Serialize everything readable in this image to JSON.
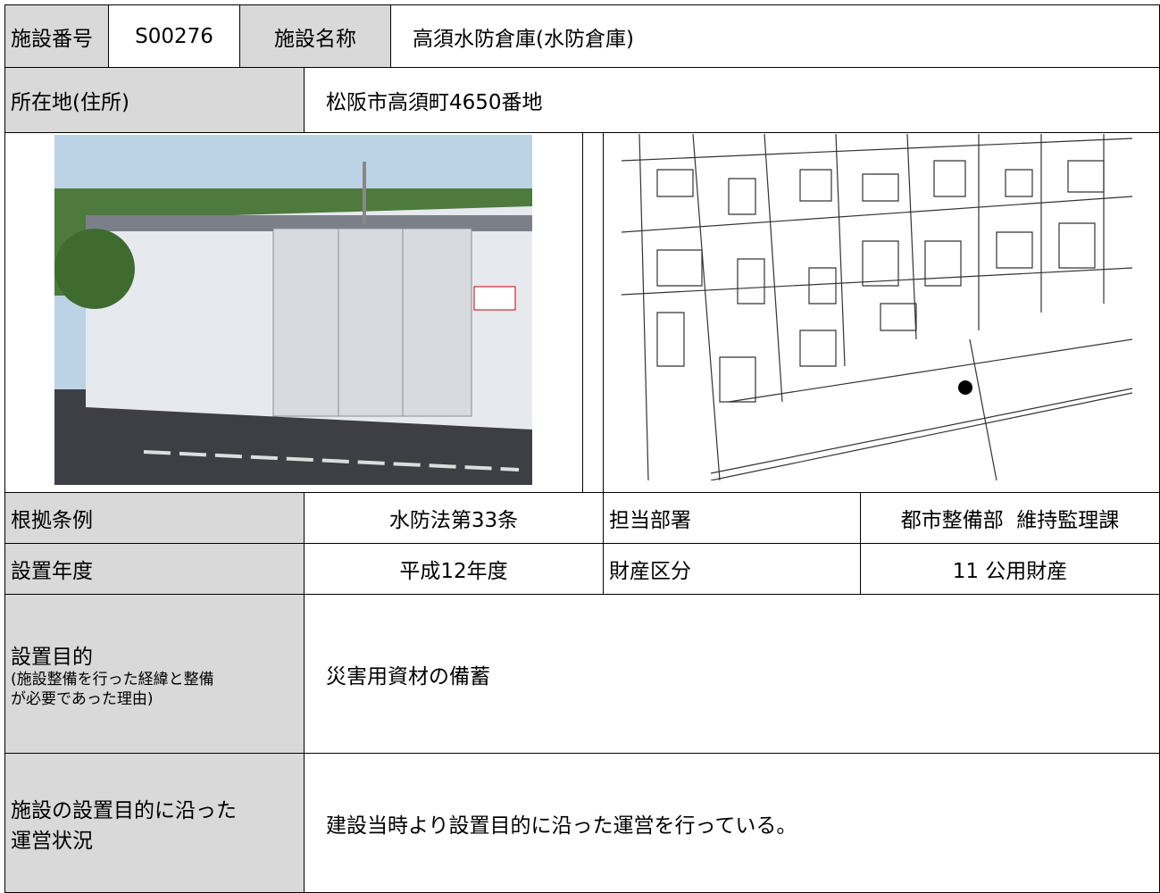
{
  "header": {
    "number_label": "施設番号",
    "number": "S00276",
    "name_label": "施設名称",
    "name": "高須水防倉庫(水防倉庫)"
  },
  "address": {
    "label": "所在地(住所)",
    "value": "松阪市高須町4650番地"
  },
  "table": {
    "rows": [
      [
        "根拠条例",
        "水防法第33条",
        "担当部署",
        "都市整備部  維持監理課"
      ],
      [
        "設置年度",
        "平成12年度",
        "財産区分",
        "11 公用財産"
      ]
    ]
  },
  "purpose": {
    "label": "設置目的",
    "note_lines": [
      "(施設整備を行った経緯と整備",
      "が必要であった理由)"
    ],
    "value": "災害用資材の備蓄"
  },
  "status": {
    "label_lines": [
      "施設の設置目的に沿った",
      "運営状況"
    ],
    "value": "建設当時より設置目的に沿った運営を行っている。"
  }
}
